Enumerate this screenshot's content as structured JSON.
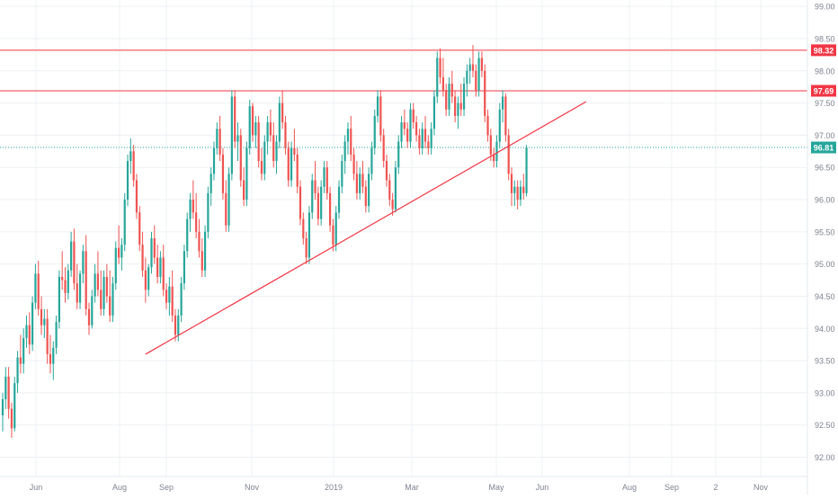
{
  "chart_data": {
    "type": "candlestick",
    "instrument_note": "",
    "x_tick_labels": [
      "Jun",
      "Aug",
      "Sep",
      "Nov",
      "2019",
      "Mar",
      "May",
      "Jun",
      "Aug",
      "Sep",
      "2",
      "Nov"
    ],
    "y_tick_labels": [
      "92.00",
      "92.50",
      "93.00",
      "93.50",
      "94.00",
      "94.50",
      "95.00",
      "95.50",
      "96.00",
      "96.50",
      "97.00",
      "97.50",
      "98.00",
      "98.50",
      "99.00"
    ],
    "ylim": [
      91.7,
      99.1
    ],
    "grid": true,
    "colors": {
      "up": "#26a69a",
      "down": "#ef5350",
      "line": "#f23645",
      "last_price": "#26a69a",
      "grid": "#eef0f3",
      "axis_text": "#7d8390"
    },
    "price_levels": [
      {
        "value": 98.32,
        "label": "98.32",
        "color": "#f23645"
      },
      {
        "value": 97.69,
        "label": "97.69",
        "color": "#f23645"
      }
    ],
    "last_price": {
      "value": 96.81,
      "label": "96.81",
      "color": "#26a69a"
    },
    "trendline": {
      "start": {
        "index": 48,
        "price": 93.6
      },
      "end": {
        "index": 196,
        "price": 97.52
      }
    },
    "candles": [
      [
        92.65,
        93.0,
        92.4,
        92.9
      ],
      [
        92.9,
        93.4,
        92.75,
        93.25
      ],
      [
        93.25,
        93.4,
        92.6,
        92.75
      ],
      [
        92.75,
        92.85,
        92.3,
        92.45
      ],
      [
        92.45,
        93.25,
        92.4,
        93.15
      ],
      [
        93.15,
        93.65,
        93.0,
        93.55
      ],
      [
        93.55,
        93.9,
        93.3,
        93.45
      ],
      [
        93.45,
        94.0,
        93.3,
        93.85
      ],
      [
        93.85,
        94.2,
        93.7,
        94.05
      ],
      [
        94.05,
        94.25,
        93.6,
        93.75
      ],
      [
        93.75,
        94.5,
        93.65,
        94.4
      ],
      [
        94.4,
        95.0,
        94.3,
        94.85
      ],
      [
        94.85,
        95.05,
        94.2,
        94.3
      ],
      [
        94.3,
        94.5,
        93.9,
        94.05
      ],
      [
        94.05,
        94.3,
        93.85,
        94.15
      ],
      [
        94.15,
        94.3,
        93.45,
        93.6
      ],
      [
        93.6,
        93.9,
        93.3,
        93.45
      ],
      [
        93.45,
        93.8,
        93.2,
        93.7
      ],
      [
        93.7,
        94.2,
        93.6,
        94.1
      ],
      [
        94.1,
        94.9,
        94.0,
        94.8
      ],
      [
        94.8,
        95.2,
        94.6,
        94.75
      ],
      [
        94.75,
        94.95,
        94.4,
        94.55
      ],
      [
        94.55,
        95.0,
        94.45,
        94.9
      ],
      [
        94.9,
        95.5,
        94.8,
        95.35
      ],
      [
        95.35,
        95.55,
        94.6,
        94.7
      ],
      [
        94.7,
        95.0,
        94.3,
        94.4
      ],
      [
        94.4,
        94.9,
        94.3,
        94.85
      ],
      [
        94.85,
        95.3,
        94.7,
        95.2
      ],
      [
        95.2,
        95.45,
        94.2,
        94.3
      ],
      [
        94.3,
        94.4,
        93.9,
        94.05
      ],
      [
        94.05,
        94.6,
        94.0,
        94.5
      ],
      [
        94.5,
        95.0,
        94.4,
        94.85
      ],
      [
        94.85,
        95.2,
        94.5,
        94.6
      ],
      [
        94.6,
        94.9,
        94.2,
        94.3
      ],
      [
        94.3,
        94.9,
        94.2,
        94.8
      ],
      [
        94.8,
        95.0,
        94.4,
        94.5
      ],
      [
        94.5,
        94.9,
        94.1,
        94.2
      ],
      [
        94.2,
        94.8,
        94.1,
        94.7
      ],
      [
        94.7,
        95.35,
        94.6,
        95.25
      ],
      [
        95.25,
        95.6,
        95.0,
        95.1
      ],
      [
        95.1,
        95.4,
        94.9,
        95.3
      ],
      [
        95.3,
        96.1,
        95.2,
        96.0
      ],
      [
        96.0,
        96.7,
        95.9,
        96.6
      ],
      [
        96.6,
        96.95,
        96.4,
        96.75
      ],
      [
        96.75,
        96.85,
        96.2,
        96.3
      ],
      [
        96.3,
        96.4,
        95.7,
        95.8
      ],
      [
        95.8,
        95.9,
        95.2,
        95.3
      ],
      [
        95.3,
        95.5,
        94.8,
        94.9
      ],
      [
        94.9,
        95.1,
        94.4,
        94.6
      ],
      [
        94.6,
        95.0,
        94.5,
        94.95
      ],
      [
        94.95,
        95.5,
        94.85,
        95.4
      ],
      [
        95.4,
        95.6,
        95.0,
        95.1
      ],
      [
        95.1,
        95.3,
        94.7,
        94.8
      ],
      [
        94.8,
        95.2,
        94.7,
        95.1
      ],
      [
        95.1,
        95.3,
        94.5,
        94.6
      ],
      [
        94.6,
        94.7,
        94.3,
        94.4
      ],
      [
        94.4,
        94.8,
        94.2,
        94.65
      ],
      [
        94.65,
        94.9,
        94.1,
        94.2
      ],
      [
        94.2,
        94.3,
        93.8,
        93.9
      ],
      [
        93.9,
        94.3,
        93.8,
        94.2
      ],
      [
        94.2,
        94.8,
        94.1,
        94.7
      ],
      [
        94.7,
        95.3,
        94.6,
        95.2
      ],
      [
        95.2,
        95.8,
        95.1,
        95.7
      ],
      [
        95.7,
        96.1,
        95.5,
        96.0
      ],
      [
        96.0,
        96.3,
        95.7,
        95.8
      ],
      [
        95.8,
        96.1,
        95.4,
        95.5
      ],
      [
        95.5,
        95.7,
        95.1,
        95.2
      ],
      [
        95.2,
        95.4,
        94.8,
        94.9
      ],
      [
        94.9,
        95.6,
        94.8,
        95.5
      ],
      [
        95.5,
        96.2,
        95.4,
        96.1
      ],
      [
        96.1,
        96.5,
        95.9,
        96.4
      ],
      [
        96.4,
        96.9,
        96.3,
        96.8
      ],
      [
        96.8,
        97.2,
        96.7,
        97.1
      ],
      [
        97.1,
        97.3,
        96.6,
        96.7
      ],
      [
        96.7,
        96.8,
        96.0,
        96.1
      ],
      [
        96.1,
        96.3,
        95.5,
        95.6
      ],
      [
        95.6,
        96.5,
        95.5,
        96.4
      ],
      [
        96.4,
        97.7,
        96.3,
        97.6
      ],
      [
        97.6,
        97.7,
        96.8,
        96.9
      ],
      [
        96.9,
        97.2,
        96.6,
        97.0
      ],
      [
        97.0,
        97.1,
        96.2,
        96.3
      ],
      [
        96.3,
        96.5,
        95.9,
        96.0
      ],
      [
        96.0,
        96.9,
        95.9,
        96.8
      ],
      [
        96.8,
        97.55,
        96.7,
        97.45
      ],
      [
        97.45,
        97.5,
        96.9,
        97.0
      ],
      [
        97.0,
        97.3,
        96.8,
        97.2
      ],
      [
        97.2,
        97.3,
        96.5,
        96.6
      ],
      [
        96.6,
        96.8,
        96.3,
        96.4
      ],
      [
        96.4,
        97.0,
        96.3,
        96.9
      ],
      [
        96.9,
        97.3,
        96.7,
        97.2
      ],
      [
        97.2,
        97.4,
        96.9,
        97.0
      ],
      [
        97.0,
        97.2,
        96.5,
        96.6
      ],
      [
        96.6,
        97.0,
        96.4,
        96.9
      ],
      [
        96.9,
        97.6,
        96.8,
        97.5
      ],
      [
        97.5,
        97.7,
        97.1,
        97.2
      ],
      [
        97.2,
        97.3,
        96.7,
        96.8
      ],
      [
        96.8,
        96.9,
        96.2,
        96.3
      ],
      [
        96.3,
        96.9,
        96.2,
        96.8
      ],
      [
        96.8,
        97.1,
        96.6,
        96.7
      ],
      [
        96.7,
        96.8,
        96.1,
        96.2
      ],
      [
        96.2,
        96.3,
        95.6,
        95.7
      ],
      [
        95.7,
        95.8,
        95.3,
        95.4
      ],
      [
        95.4,
        95.5,
        95.0,
        95.1
      ],
      [
        95.1,
        95.9,
        95.0,
        95.8
      ],
      [
        95.8,
        96.4,
        95.7,
        96.3
      ],
      [
        96.3,
        96.6,
        96.0,
        96.1
      ],
      [
        96.1,
        96.2,
        95.6,
        95.7
      ],
      [
        95.7,
        96.3,
        95.6,
        96.2
      ],
      [
        96.2,
        96.6,
        96.1,
        96.5
      ],
      [
        96.5,
        96.6,
        96.0,
        96.1
      ],
      [
        96.1,
        96.2,
        95.5,
        95.6
      ],
      [
        95.6,
        95.7,
        95.2,
        95.3
      ],
      [
        95.3,
        95.9,
        95.2,
        95.8
      ],
      [
        95.8,
        96.3,
        95.7,
        96.2
      ],
      [
        96.2,
        96.7,
        96.1,
        96.6
      ],
      [
        96.6,
        97.0,
        96.4,
        96.9
      ],
      [
        96.9,
        97.2,
        96.7,
        97.1
      ],
      [
        97.1,
        97.3,
        96.6,
        96.7
      ],
      [
        96.7,
        96.8,
        96.3,
        96.4
      ],
      [
        96.4,
        96.6,
        96.0,
        96.1
      ],
      [
        96.1,
        96.5,
        96.0,
        96.4
      ],
      [
        96.4,
        96.6,
        96.1,
        96.2
      ],
      [
        96.2,
        96.3,
        95.8,
        95.9
      ],
      [
        95.9,
        96.5,
        95.8,
        96.4
      ],
      [
        96.4,
        96.9,
        96.3,
        96.8
      ],
      [
        96.8,
        97.4,
        96.7,
        97.3
      ],
      [
        97.3,
        97.7,
        97.2,
        97.6
      ],
      [
        97.6,
        97.7,
        96.9,
        97.0
      ],
      [
        97.0,
        97.1,
        96.5,
        96.6
      ],
      [
        96.6,
        96.7,
        96.2,
        96.3
      ],
      [
        96.3,
        96.4,
        95.9,
        96.0
      ],
      [
        96.0,
        96.1,
        95.75,
        95.85
      ],
      [
        95.85,
        96.6,
        95.8,
        96.5
      ],
      [
        96.5,
        97.0,
        96.4,
        96.9
      ],
      [
        96.9,
        97.3,
        96.8,
        97.2
      ],
      [
        97.2,
        97.4,
        97.0,
        97.1
      ],
      [
        97.1,
        97.2,
        96.8,
        96.9
      ],
      [
        96.9,
        97.5,
        96.8,
        97.4
      ],
      [
        97.4,
        97.5,
        97.1,
        97.2
      ],
      [
        97.2,
        97.3,
        96.9,
        97.0
      ],
      [
        97.0,
        97.1,
        96.7,
        96.8
      ],
      [
        96.8,
        97.2,
        96.7,
        97.1
      ],
      [
        97.1,
        97.3,
        96.8,
        96.9
      ],
      [
        96.9,
        97.0,
        96.7,
        96.8
      ],
      [
        96.8,
        97.2,
        96.7,
        97.1
      ],
      [
        97.1,
        97.7,
        97.0,
        97.6
      ],
      [
        97.6,
        98.3,
        97.5,
        98.2
      ],
      [
        98.2,
        98.35,
        97.8,
        97.9
      ],
      [
        97.9,
        98.2,
        97.6,
        97.7
      ],
      [
        97.7,
        97.8,
        97.3,
        97.4
      ],
      [
        97.4,
        97.9,
        97.3,
        97.8
      ],
      [
        97.8,
        98.0,
        97.5,
        97.6
      ],
      [
        97.6,
        97.7,
        97.2,
        97.3
      ],
      [
        97.3,
        97.6,
        97.1,
        97.5
      ],
      [
        97.5,
        97.8,
        97.3,
        97.4
      ],
      [
        97.4,
        97.9,
        97.3,
        97.8
      ],
      [
        97.8,
        98.1,
        97.6,
        98.0
      ],
      [
        98.0,
        98.2,
        97.8,
        98.1
      ],
      [
        98.1,
        98.4,
        97.9,
        98.0
      ],
      [
        98.0,
        98.1,
        97.6,
        97.7
      ],
      [
        97.7,
        98.3,
        97.6,
        98.2
      ],
      [
        98.2,
        98.3,
        97.9,
        98.0
      ],
      [
        98.0,
        98.1,
        97.2,
        97.3
      ],
      [
        97.3,
        97.4,
        96.9,
        97.0
      ],
      [
        97.0,
        97.1,
        96.6,
        96.7
      ],
      [
        96.7,
        96.8,
        96.5,
        96.6
      ],
      [
        96.6,
        97.0,
        96.5,
        96.9
      ],
      [
        96.9,
        97.5,
        96.8,
        97.4
      ],
      [
        97.4,
        97.7,
        97.2,
        97.6
      ],
      [
        97.6,
        97.65,
        96.9,
        97.0
      ],
      [
        97.0,
        97.1,
        96.3,
        96.4
      ],
      [
        96.4,
        96.5,
        95.9,
        96.1
      ],
      [
        96.1,
        96.3,
        95.9,
        96.2
      ],
      [
        96.2,
        96.3,
        95.85,
        96.0
      ],
      [
        96.0,
        96.3,
        95.9,
        96.2
      ],
      [
        96.2,
        96.4,
        96.0,
        96.1
      ],
      [
        96.1,
        96.85,
        96.05,
        96.81
      ]
    ]
  }
}
